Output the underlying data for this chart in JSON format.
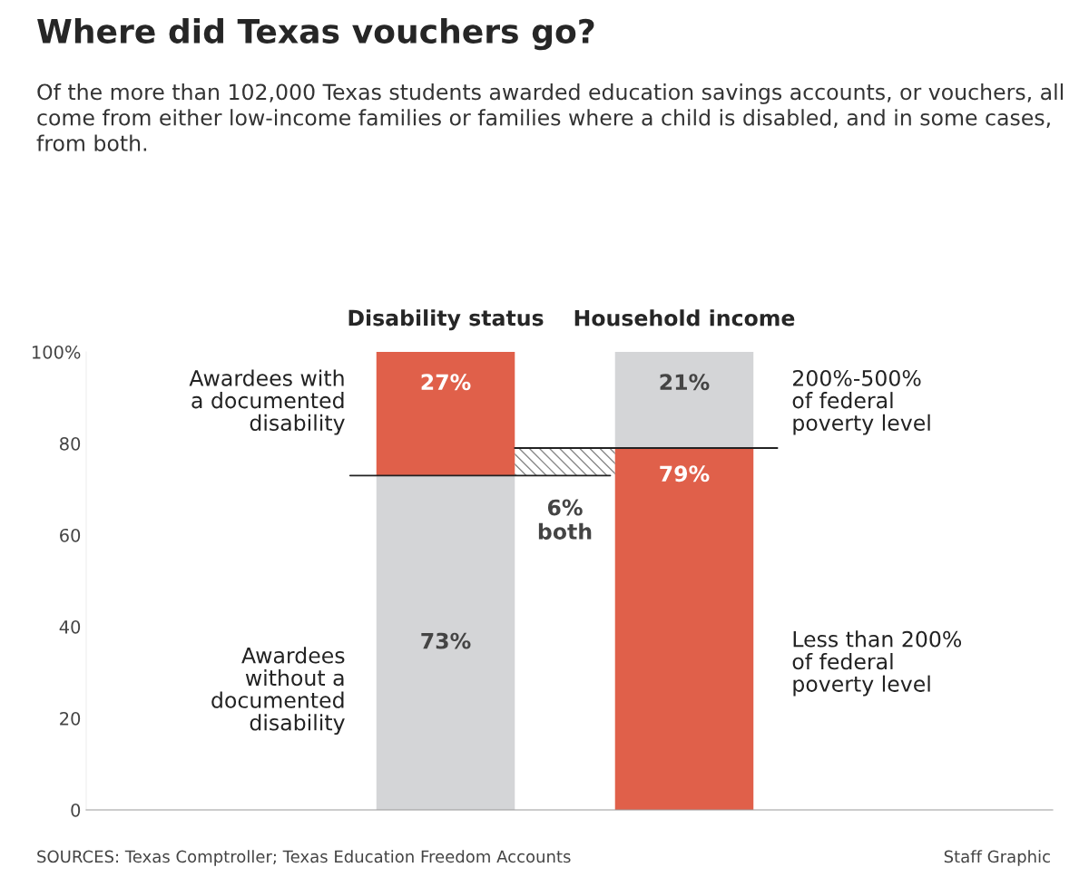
{
  "chart_data": {
    "type": "bar",
    "stacked": true,
    "title": "Where did Texas vouchers go?",
    "subtitle": "Of the more than 102,000 Texas students awarded education savings accounts, or vouchers, all come from either low-income families or families where a child is disabled, and in some cases, from both.",
    "categories": [
      "Disability status",
      "Household income"
    ],
    "series": [
      {
        "colors": [
          "#d4d5d7",
          "#e0604a"
        ],
        "values": [
          73,
          79
        ],
        "value_labels": [
          "73%",
          "79%"
        ]
      },
      {
        "colors": [
          "#e0604a",
          "#d4d5d7"
        ],
        "values": [
          27,
          21
        ],
        "value_labels": [
          "27%",
          "21%"
        ]
      }
    ],
    "ylim": [
      0,
      100
    ],
    "yticks": [
      0,
      20,
      40,
      60,
      80,
      {
        "value": 100,
        "label": "100%"
      }
    ],
    "ref_lines": [
      {
        "axis": "y",
        "value": 73,
        "color": "#222222"
      },
      {
        "axis": "y",
        "value": 79,
        "color": "#222222"
      }
    ],
    "bands": [
      {
        "axis": "y",
        "from": 73,
        "to": 79,
        "label": "6%\nboth",
        "color": "#888888"
      }
    ],
    "annotations": [
      "Awardees with\na documented\ndisability",
      "Awardees\nwithout a\ndocumented\ndisability",
      "200%-500%\nof federal\npoverty level",
      "Less than 200%\nof federal\npoverty level",
      "SOURCES: Texas Comptroller; Texas Education Freedom Accounts",
      "Staff Graphic"
    ],
    "legend": false
  }
}
